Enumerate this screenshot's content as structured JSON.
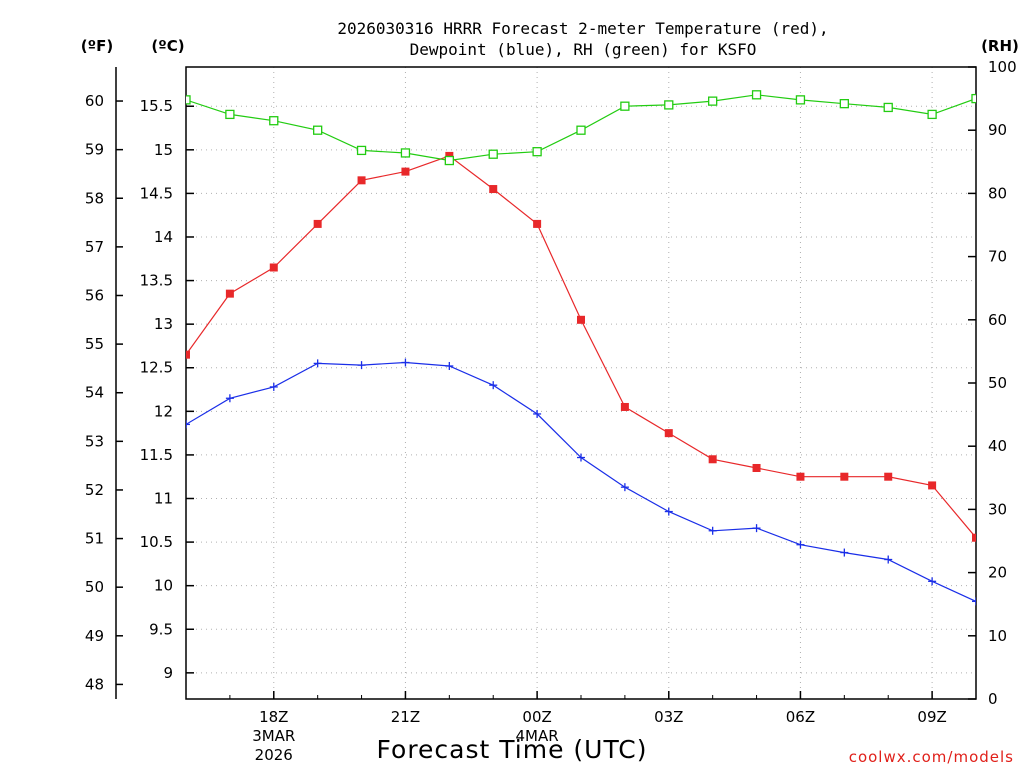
{
  "chart_data": {
    "type": "line",
    "title_line1": "2026030316 HRRR Forecast 2-meter Temperature (red),",
    "title_line2": "Dewpoint (blue), RH (green) for KSFO",
    "unit_f": "(ºF)",
    "unit_c": "(ºC)",
    "unit_rh": "(RH)",
    "xlabel": "Forecast Time (UTC)",
    "credit": "coolwx.com/models",
    "x_hours": [
      16,
      17,
      18,
      19,
      20,
      21,
      22,
      23,
      24,
      25,
      26,
      27,
      28,
      29,
      30,
      31,
      32,
      33,
      34
    ],
    "x_range": [
      16,
      34
    ],
    "x_ticks": [
      {
        "hour": 18,
        "label": "18Z",
        "sub1": "3MAR",
        "sub2": "2026"
      },
      {
        "hour": 21,
        "label": "21Z",
        "sub1": "",
        "sub2": ""
      },
      {
        "hour": 24,
        "label": "00Z",
        "sub1": "4MAR",
        "sub2": ""
      },
      {
        "hour": 27,
        "label": "03Z",
        "sub1": "",
        "sub2": ""
      },
      {
        "hour": 30,
        "label": "06Z",
        "sub1": "",
        "sub2": ""
      },
      {
        "hour": 33,
        "label": "09Z",
        "sub1": "",
        "sub2": ""
      }
    ],
    "f_range": [
      47.7,
      60.7
    ],
    "f_ticks": [
      48,
      49,
      50,
      51,
      52,
      53,
      54,
      55,
      56,
      57,
      58,
      59,
      60
    ],
    "c_range": [
      8.7,
      15.95
    ],
    "c_ticks": [
      "9",
      "9.5",
      "10",
      "10.5",
      "11",
      "11.5",
      "12",
      "12.5",
      "13",
      "13.5",
      "14",
      "14.5",
      "15",
      "15.5"
    ],
    "rh_range": [
      0,
      100
    ],
    "rh_ticks": [
      "0",
      "10",
      "20",
      "30",
      "40",
      "50",
      "60",
      "70",
      "80",
      "90",
      "100"
    ],
    "series": [
      {
        "name": "Temperature (°C)",
        "color": "#e8282a",
        "marker": "filled-square",
        "values": [
          12.65,
          13.35,
          13.65,
          14.15,
          14.65,
          14.75,
          14.93,
          14.55,
          14.15,
          13.05,
          12.05,
          11.75,
          11.45,
          11.35,
          11.25,
          11.25,
          11.25,
          11.15,
          10.55
        ]
      },
      {
        "name": "Dewpoint (°C)",
        "color": "#1a2ee8",
        "marker": "plus",
        "values": [
          11.85,
          12.15,
          12.28,
          12.55,
          12.53,
          12.56,
          12.52,
          12.3,
          11.97,
          11.47,
          11.13,
          10.85,
          10.63,
          10.66,
          10.47,
          10.38,
          10.3,
          10.05,
          9.82
        ]
      },
      {
        "name": "RH (%)",
        "color": "#22cc11",
        "marker": "open-square",
        "values": [
          94.8,
          92.5,
          91.5,
          90,
          86.8,
          86.4,
          85.2,
          86.2,
          86.6,
          90,
          93.8,
          94,
          94.6,
          95.6,
          94.8,
          94.2,
          93.6,
          92.5,
          95
        ]
      }
    ]
  }
}
